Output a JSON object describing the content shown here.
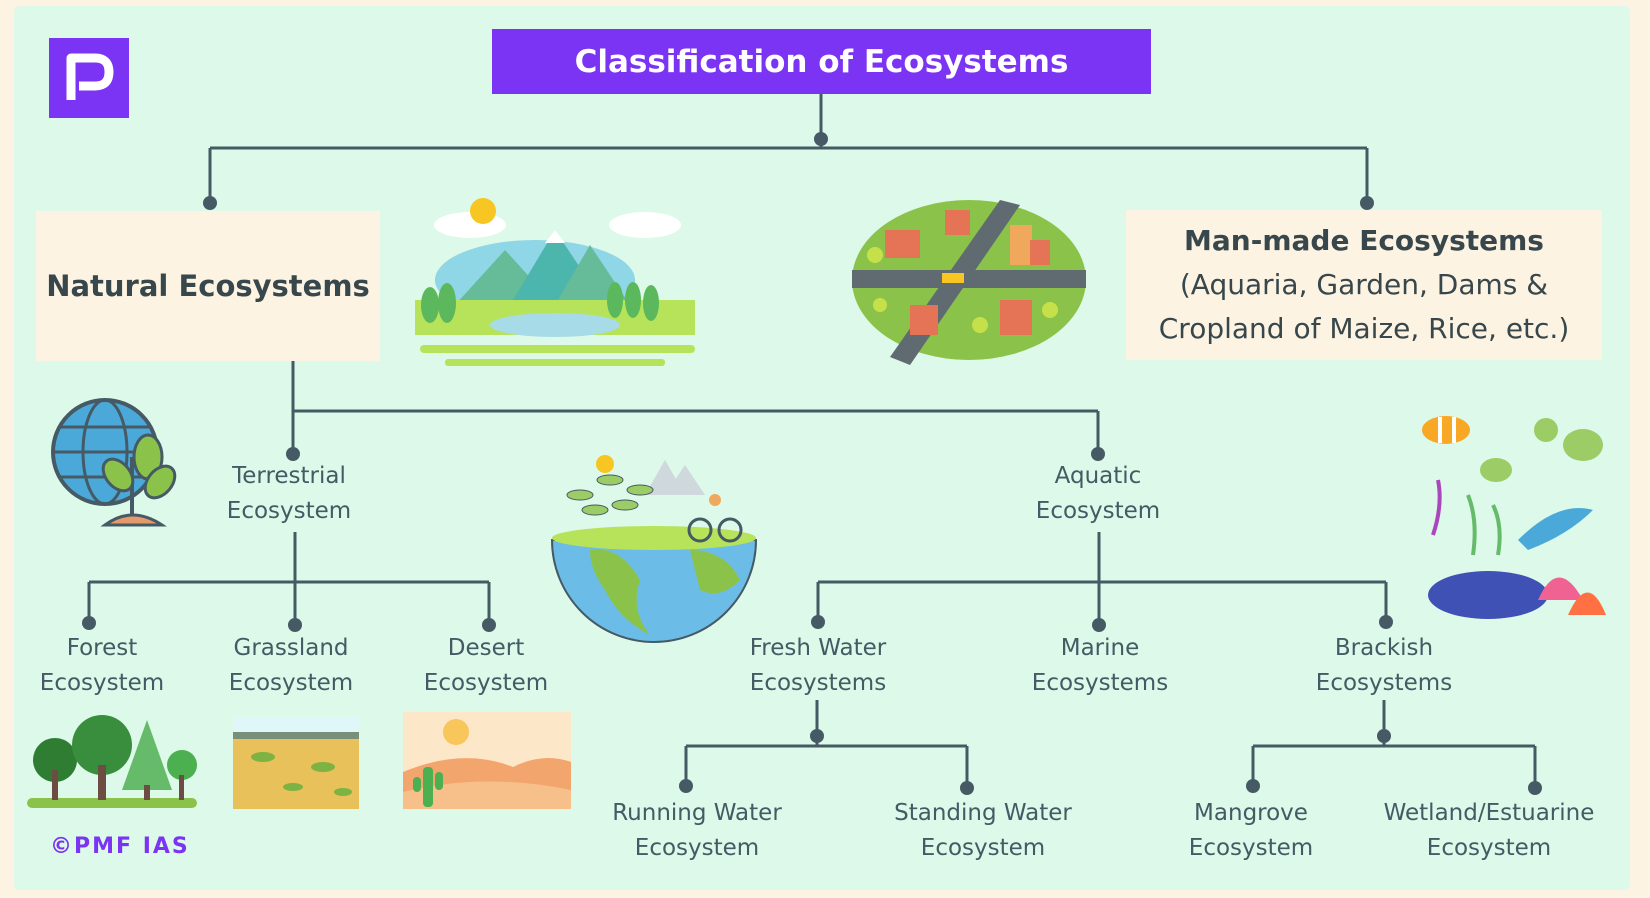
{
  "title": "Classification of Ecosystems",
  "logo_icon": "pmf-p-logo",
  "natural": {
    "label": "Natural Ecosystems"
  },
  "manmade": {
    "label": "Man-made Ecosystems",
    "examples_line1": "(Aquaria, Garden, Dams &",
    "examples_line2": "Cropland of Maize, Rice, etc.)"
  },
  "terrestrial": {
    "line1": "Terrestrial",
    "line2": "Ecosystem"
  },
  "aquatic": {
    "line1": "Aquatic",
    "line2": "Ecosystem"
  },
  "forest": {
    "line1": "Forest",
    "line2": "Ecosystem"
  },
  "grassland": {
    "line1": "Grassland",
    "line2": "Ecosystem"
  },
  "desert": {
    "line1": "Desert",
    "line2": "Ecosystem"
  },
  "freshwater": {
    "line1": "Fresh Water",
    "line2": "Ecosystems"
  },
  "marine": {
    "line1": "Marine",
    "line2": "Ecosystems"
  },
  "brackish": {
    "line1": "Brackish",
    "line2": "Ecosystems"
  },
  "running": {
    "line1": "Running Water",
    "line2": "Ecosystem"
  },
  "standing": {
    "line1": "Standing Water",
    "line2": "Ecosystem"
  },
  "mangrove": {
    "line1": "Mangrove",
    "line2": "Ecosystem"
  },
  "wetland": {
    "line1": "Wetland/Estuarine",
    "line2": "Ecosystem"
  },
  "copyright": "©PMF IAS",
  "colors": {
    "accent": "#7b33f4",
    "connector": "#455a64",
    "panel": "#dcf9e9",
    "box": "#fdf3e3"
  }
}
